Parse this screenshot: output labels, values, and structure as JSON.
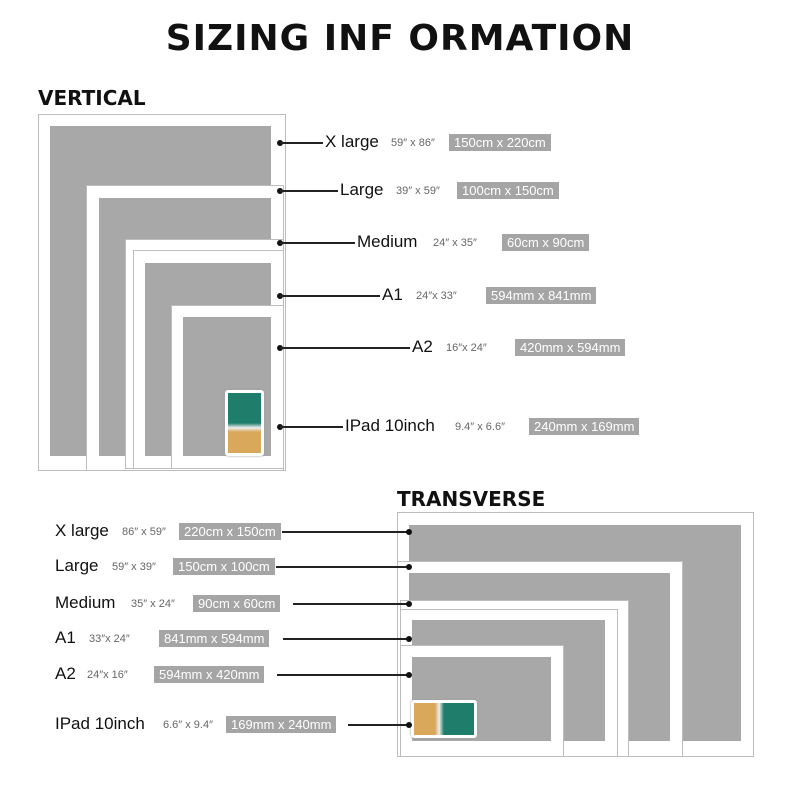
{
  "title": "SIZING INF ORMATION",
  "vertical": {
    "heading": "VERTICAL",
    "rows": [
      {
        "name": "X large",
        "inches": "59″ x 86″",
        "metric": "150cm x 220cm"
      },
      {
        "name": "Large",
        "inches": "39″ x 59″",
        "metric": "100cm x 150cm"
      },
      {
        "name": "Medium",
        "inches": "24″ x 35″",
        "metric": "60cm x 90cm"
      },
      {
        "name": "A1",
        "inches": "24″x 33″",
        "metric": "594mm x 841mm"
      },
      {
        "name": "A2",
        "inches": "16″x 24″",
        "metric": "420mm x 594mm"
      },
      {
        "name": "IPad 10inch",
        "inches": "9.4″ x 6.6″",
        "metric": "240mm x 169mm"
      }
    ]
  },
  "transverse": {
    "heading": "TRANSVERSE",
    "rows": [
      {
        "name": "X large",
        "inches": "86″ x 59″",
        "metric": "220cm x 150cm"
      },
      {
        "name": "Large",
        "inches": "59″ x 39″",
        "metric": "150cm x 100cm"
      },
      {
        "name": "Medium",
        "inches": "35″ x 24″",
        "metric": "90cm x 60cm"
      },
      {
        "name": "A1",
        "inches": "33″x 24″",
        "metric": "841mm x 594mm"
      },
      {
        "name": "A2",
        "inches": "24″x 16″",
        "metric": "594mm x 420mm"
      },
      {
        "name": "IPad 10inch",
        "inches": "6.6″ x 9.4″",
        "metric": "169mm x 240mm"
      }
    ]
  },
  "colors": {
    "frame_fill": "#a8a8a8",
    "label_box": "#a5a5a5",
    "ipad_sea": "#1f7d6b",
    "ipad_sand": "#d9a85a"
  }
}
